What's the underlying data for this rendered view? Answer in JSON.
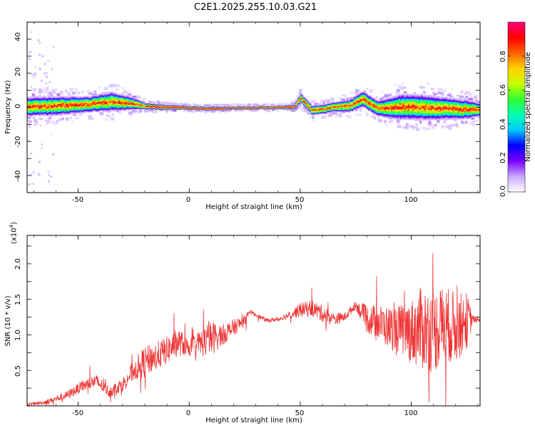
{
  "chart_data": [
    {
      "type": "heatmap",
      "title": "C2E1.2025.255.10.03.G21",
      "xlabel": "Height of straight line (km)",
      "ylabel": "Frequency (Hz)",
      "xlim": [
        -73,
        131
      ],
      "ylim": [
        -50,
        50
      ],
      "x_ticks": [
        "-50",
        "0",
        "50",
        "100"
      ],
      "y_ticks": [
        "40",
        "20",
        "0",
        "-20",
        "-40"
      ],
      "grid": false,
      "colorbar": {
        "label": "Normalized spectral amplitude",
        "range": [
          0,
          1
        ],
        "ticks": [
          "0.0",
          "0.2",
          "0.4",
          "0.6",
          "0.8"
        ],
        "colors": [
          "#ffffff",
          "#c8a8ff",
          "#7a00ff",
          "#0000ff",
          "#00c8ff",
          "#00ffb0",
          "#30ff30",
          "#c8ff00",
          "#ffd000",
          "#ff6000",
          "#ff0000",
          "#ff0080"
        ]
      },
      "ridge": {
        "description_points_km": [
          -73,
          -60,
          -45,
          -35,
          -26,
          -20,
          -10,
          0,
          10,
          20,
          30,
          40,
          47,
          50,
          55,
          60,
          65,
          72,
          78,
          85,
          95,
          105,
          115,
          125,
          131
        ],
        "center_freq_hz": [
          0.5,
          1.0,
          2.0,
          3.5,
          2.5,
          1.0,
          0.3,
          0.0,
          -0.4,
          0.0,
          0.2,
          0.2,
          0.5,
          5.5,
          -1.5,
          -1.0,
          0.5,
          1.0,
          5.0,
          -0.5,
          0.5,
          0.0,
          -0.5,
          -1.0,
          -1.0
        ],
        "spread_hz": [
          6,
          6,
          5,
          6,
          4,
          2,
          1.5,
          1.2,
          1.2,
          1.0,
          1.0,
          1.0,
          1.5,
          3,
          3,
          3,
          3,
          4,
          5,
          5,
          8,
          8,
          7,
          6,
          4
        ]
      }
    },
    {
      "type": "line",
      "xlabel": "Height of straight line (km)",
      "ylabel": "SNR (10 * v/v)",
      "y_scale_label": "(x10",
      "y_scale_exponent": "4",
      "y_scale_suffix": ")",
      "xlim": [
        -73,
        131
      ],
      "ylim": [
        0,
        2.4
      ],
      "x_ticks": [
        "-50",
        "0",
        "50",
        "100"
      ],
      "y_ticks": [
        "0.5",
        "1.0",
        "1.5",
        "2.0"
      ],
      "line_color": "#ee3333",
      "series": [
        {
          "name": "SNR",
          "x": [
            -73,
            -65,
            -55,
            -48,
            -42,
            -36,
            -30,
            -25,
            -20,
            -15,
            -10,
            -5,
            0,
            5,
            10,
            15,
            20,
            25,
            27,
            30,
            35,
            40,
            45,
            50,
            55,
            60,
            65,
            70,
            75,
            80,
            85,
            90,
            95,
            100,
            105,
            110,
            115,
            120,
            125,
            128,
            131
          ],
          "y": [
            0.02,
            0.05,
            0.15,
            0.28,
            0.35,
            0.2,
            0.3,
            0.5,
            0.62,
            0.7,
            0.78,
            0.9,
            0.82,
            0.88,
            0.95,
            1.0,
            1.1,
            1.2,
            1.33,
            1.28,
            1.2,
            1.22,
            1.28,
            1.35,
            1.38,
            1.3,
            1.22,
            1.25,
            1.42,
            1.22,
            1.18,
            1.1,
            1.08,
            1.05,
            1.1,
            1.05,
            1.15,
            1.1,
            1.2,
            1.22,
            1.2
          ],
          "noise_amplitude": [
            0.02,
            0.03,
            0.06,
            0.08,
            0.1,
            0.08,
            0.1,
            0.15,
            0.22,
            0.2,
            0.2,
            0.2,
            0.12,
            0.2,
            0.25,
            0.15,
            0.12,
            0.08,
            0.03,
            0.03,
            0.03,
            0.03,
            0.05,
            0.1,
            0.12,
            0.12,
            0.1,
            0.06,
            0.06,
            0.2,
            0.25,
            0.3,
            0.35,
            0.45,
            0.6,
            0.6,
            0.55,
            0.5,
            0.4,
            0.05,
            0.03
          ]
        }
      ]
    }
  ]
}
